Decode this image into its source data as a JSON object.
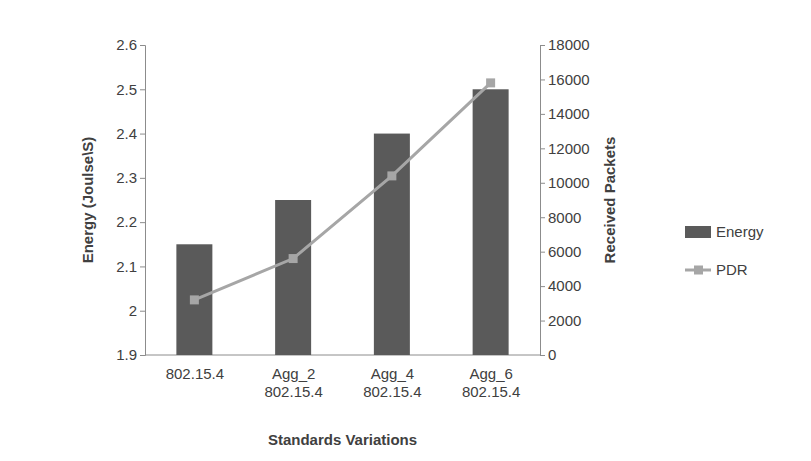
{
  "chart_data": {
    "type": "bar",
    "categories": [
      "802.15.4",
      "Agg_2 802.15.4",
      "Agg_4 802.15.4",
      "Agg_6 802.15.4"
    ],
    "x_label": "Standards Variations",
    "y_label": "Energy (Joulse\\S)",
    "y2_label": "Received Packets",
    "ylim": [
      1.9,
      2.6
    ],
    "yticks": [
      1.9,
      2,
      2.1,
      2.2,
      2.3,
      2.4,
      2.5,
      2.6
    ],
    "y2lim": [
      0,
      18000
    ],
    "y2ticks": [
      0,
      2000,
      4000,
      6000,
      8000,
      10000,
      12000,
      14000,
      16000,
      18000
    ],
    "legend": "right",
    "series": [
      {
        "name": "Energy",
        "type": "bar",
        "axis": "y",
        "color": "#5a5a5a",
        "values": [
          2.15,
          2.25,
          2.4,
          2.5
        ]
      },
      {
        "name": "PDR",
        "type": "line",
        "axis": "y2",
        "color": "#a6a6a6",
        "marker": "square",
        "values": [
          3200,
          5600,
          10400,
          15800
        ]
      }
    ]
  }
}
